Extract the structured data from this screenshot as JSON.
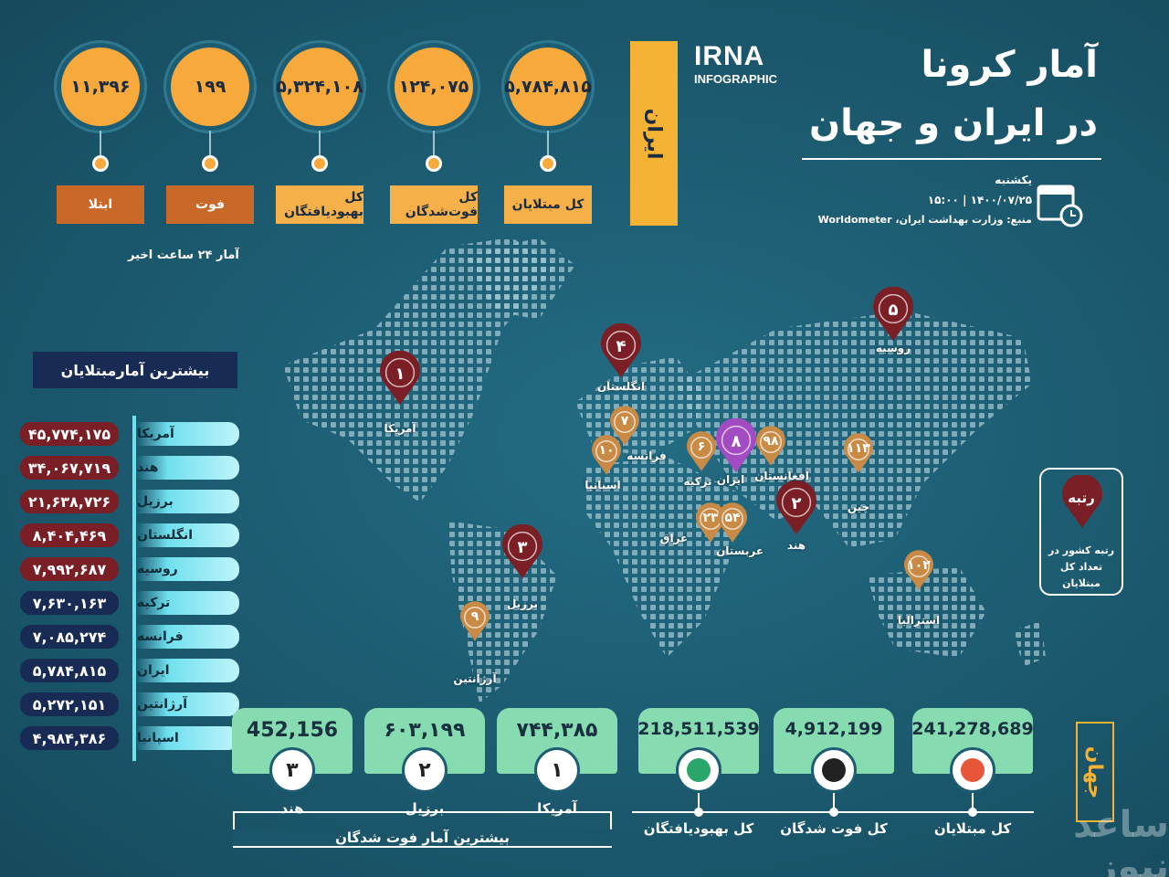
{
  "header": {
    "title_line1": "آمار کرونا",
    "title_line2": "در ایران و جهان",
    "logo": "IRNA",
    "logo_sub": "INFOGRAPHIC",
    "day": "یکشنبه",
    "datetime": "۱۴۰۰/۰۷/۲۵ | ۱۵:۰۰",
    "source": "منبع: وزارت بهداشت ایران، Worldometer"
  },
  "iran": {
    "label": "ایران",
    "stats": [
      {
        "value": "۵,۷۸۴,۸۱۵",
        "label": "کل مبتلایان"
      },
      {
        "value": "۱۲۴,۰۷۵",
        "label": "کل فوت‌شدگان"
      },
      {
        "value": "۵,۳۲۴,۱۰۸",
        "label": "کل بهبودیافتگان"
      },
      {
        "value": "۱۹۹",
        "label": "فوت"
      },
      {
        "value": "۱۱,۳۹۶",
        "label": "ابتلا"
      }
    ],
    "note": "آمار ۲۴ ساعت اخیر"
  },
  "top_cases": {
    "title": "بیشترین آمارمبتلایان",
    "rows": [
      [
        "آمریکا",
        "۴۵,۷۷۴,۱۷۵"
      ],
      [
        "هند",
        "۳۴,۰۶۷,۷۱۹"
      ],
      [
        "برزیل",
        "۲۱,۶۳۸,۷۲۶"
      ],
      [
        "انگلستان",
        "۸,۴۰۴,۴۶۹"
      ],
      [
        "روسیه",
        "۷,۹۹۲,۶۸۷"
      ],
      [
        "ترکیه",
        "۷,۶۳۰,۱۶۳"
      ],
      [
        "فرانسه",
        "۷,۰۸۵,۲۷۴"
      ],
      [
        "ایران",
        "۵,۷۸۴,۸۱۵"
      ],
      [
        "آرژانتین",
        "۵,۲۷۲,۱۵۱"
      ],
      [
        "اسپانیا",
        "۴,۹۸۴,۳۸۶"
      ]
    ]
  },
  "map_pins": [
    {
      "rank": "۱",
      "country": "آمریکا"
    },
    {
      "rank": "۲",
      "country": "هند"
    },
    {
      "rank": "۳",
      "country": "برزیل"
    },
    {
      "rank": "۴",
      "country": "انگلستان"
    },
    {
      "rank": "۵",
      "country": "روسیه"
    },
    {
      "rank": "۶",
      "country": "ترکیه"
    },
    {
      "rank": "۷",
      "country": "فرانسه"
    },
    {
      "rank": "۸",
      "country": "ایران"
    },
    {
      "rank": "۹",
      "country": "آرژانتین"
    },
    {
      "rank": "۱۰",
      "country": "اسپانیا"
    },
    {
      "rank": "۲۳",
      "country": "عراق"
    },
    {
      "rank": "۵۴",
      "country": "عربستان"
    },
    {
      "rank": "۹۸",
      "country": "افغانستان"
    },
    {
      "rank": "۱۰۲",
      "country": "استرالیا"
    },
    {
      "rank": "۱۱۳",
      "country": "چین"
    }
  ],
  "legend": {
    "title": "رتبه",
    "text": "رتبه کشور در تعداد کل مبتلایان"
  },
  "world": {
    "label": "جهان",
    "stats": [
      {
        "value": "241,278,689",
        "label": "کل مبتلایان"
      },
      {
        "value": "4,912,199",
        "label": "کل فوت شدگان"
      },
      {
        "value": "218,511,539",
        "label": "کل بهبودیافتگان"
      }
    ]
  },
  "top_deaths": {
    "title": "بیشترین آمار فوت شدگان",
    "items": [
      {
        "value": "۷۴۴,۳۸۵",
        "rank": "۱",
        "country": "آمریکا"
      },
      {
        "value": "۶۰۳,۱۹۹",
        "rank": "۲",
        "country": "برزیل"
      },
      {
        "value": "452,156",
        "rank": "۳",
        "country": "هند"
      }
    ]
  },
  "watermark": "ساعد نیوز"
}
